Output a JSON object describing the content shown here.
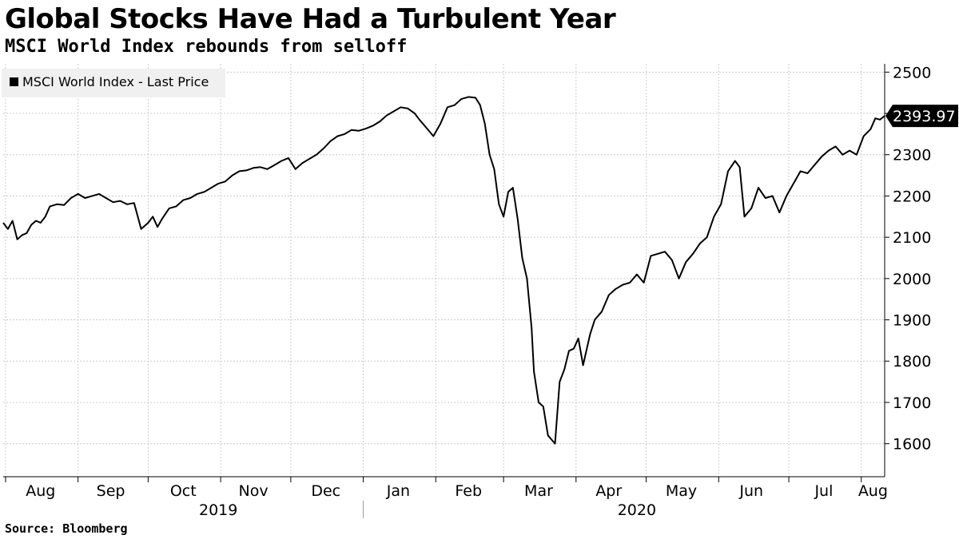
{
  "header": {
    "title": "Global Stocks Have Had a Turbulent Year",
    "subtitle": "MSCI World Index rebounds from selloff"
  },
  "footer": {
    "source": "Source: Bloomberg"
  },
  "colors": {
    "line": "#000000",
    "grid": "#cccccc",
    "legend_bg": "#f0f0f0",
    "last_price_bg": "#000000"
  },
  "chart_data": {
    "type": "line",
    "legend": {
      "entries": [
        "MSCI World Index - Last Price"
      ],
      "placement": "top-left"
    },
    "last_value_label": "2393.97",
    "xlabel": "",
    "ylabel": "",
    "ylim": [
      1520,
      2520
    ],
    "y_ticks": [
      1600,
      1700,
      1800,
      1900,
      2000,
      2100,
      2200,
      2300,
      2400,
      2500
    ],
    "y_tick_labels": [
      "1600",
      "1700",
      "1800",
      "1900",
      "2000",
      "2100",
      "2200",
      "2300",
      "2400",
      "2500"
    ],
    "y_axis_position": "right",
    "grid": true,
    "x_range": [
      "2019-07-31",
      "2020-08-11"
    ],
    "x_month_ticks": [
      "2019-08-01",
      "2019-09-01",
      "2019-10-01",
      "2019-11-01",
      "2019-12-01",
      "2020-01-01",
      "2020-02-01",
      "2020-03-01",
      "2020-04-01",
      "2020-05-01",
      "2020-06-01",
      "2020-07-01",
      "2020-08-01"
    ],
    "x_month_labels": [
      {
        "label": "Aug",
        "date": "2019-08-16"
      },
      {
        "label": "Sep",
        "date": "2019-09-15"
      },
      {
        "label": "Oct",
        "date": "2019-10-16"
      },
      {
        "label": "Nov",
        "date": "2019-11-15"
      },
      {
        "label": "Dec",
        "date": "2019-12-16"
      },
      {
        "label": "Jan",
        "date": "2020-01-16"
      },
      {
        "label": "Feb",
        "date": "2020-02-15"
      },
      {
        "label": "Mar",
        "date": "2020-03-16"
      },
      {
        "label": "Apr",
        "date": "2020-04-15"
      },
      {
        "label": "May",
        "date": "2020-05-16"
      },
      {
        "label": "Jun",
        "date": "2020-06-15"
      },
      {
        "label": "Jul",
        "date": "2020-07-16"
      },
      {
        "label": "Aug",
        "date": "2020-08-06"
      }
    ],
    "x_year_labels": [
      {
        "label": "2019",
        "date": "2019-10-31"
      },
      {
        "label": "2020",
        "date": "2020-04-27"
      }
    ],
    "year_divider_date": "2020-01-01",
    "series": [
      {
        "name": "MSCI World Index - Last Price",
        "points": [
          [
            "2019-07-31",
            2135
          ],
          [
            "2019-08-02",
            2120
          ],
          [
            "2019-08-04",
            2140
          ],
          [
            "2019-08-06",
            2095
          ],
          [
            "2019-08-08",
            2105
          ],
          [
            "2019-08-10",
            2110
          ],
          [
            "2019-08-12",
            2130
          ],
          [
            "2019-08-14",
            2140
          ],
          [
            "2019-08-16",
            2135
          ],
          [
            "2019-08-18",
            2150
          ],
          [
            "2019-08-20",
            2175
          ],
          [
            "2019-08-23",
            2180
          ],
          [
            "2019-08-26",
            2178
          ],
          [
            "2019-08-29",
            2195
          ],
          [
            "2019-09-01",
            2205
          ],
          [
            "2019-09-04",
            2195
          ],
          [
            "2019-09-07",
            2200
          ],
          [
            "2019-09-10",
            2205
          ],
          [
            "2019-09-13",
            2195
          ],
          [
            "2019-09-16",
            2185
          ],
          [
            "2019-09-19",
            2188
          ],
          [
            "2019-09-22",
            2180
          ],
          [
            "2019-09-25",
            2183
          ],
          [
            "2019-09-28",
            2120
          ],
          [
            "2019-10-01",
            2135
          ],
          [
            "2019-10-03",
            2150
          ],
          [
            "2019-10-05",
            2125
          ],
          [
            "2019-10-07",
            2145
          ],
          [
            "2019-10-10",
            2170
          ],
          [
            "2019-10-13",
            2175
          ],
          [
            "2019-10-16",
            2190
          ],
          [
            "2019-10-19",
            2195
          ],
          [
            "2019-10-22",
            2205
          ],
          [
            "2019-10-25",
            2210
          ],
          [
            "2019-10-28",
            2220
          ],
          [
            "2019-10-31",
            2230
          ],
          [
            "2019-11-03",
            2235
          ],
          [
            "2019-11-06",
            2250
          ],
          [
            "2019-11-09",
            2260
          ],
          [
            "2019-11-12",
            2262
          ],
          [
            "2019-11-15",
            2268
          ],
          [
            "2019-11-18",
            2270
          ],
          [
            "2019-11-21",
            2265
          ],
          [
            "2019-11-24",
            2275
          ],
          [
            "2019-11-27",
            2285
          ],
          [
            "2019-11-30",
            2292
          ],
          [
            "2019-12-03",
            2265
          ],
          [
            "2019-12-06",
            2280
          ],
          [
            "2019-12-09",
            2290
          ],
          [
            "2019-12-12",
            2300
          ],
          [
            "2019-12-15",
            2315
          ],
          [
            "2019-12-18",
            2333
          ],
          [
            "2019-12-21",
            2345
          ],
          [
            "2019-12-24",
            2350
          ],
          [
            "2019-12-27",
            2360
          ],
          [
            "2019-12-30",
            2358
          ],
          [
            "2020-01-02",
            2363
          ],
          [
            "2020-01-05",
            2370
          ],
          [
            "2020-01-08",
            2380
          ],
          [
            "2020-01-11",
            2395
          ],
          [
            "2020-01-14",
            2405
          ],
          [
            "2020-01-17",
            2415
          ],
          [
            "2020-01-20",
            2412
          ],
          [
            "2020-01-23",
            2400
          ],
          [
            "2020-01-25",
            2385
          ],
          [
            "2020-01-28",
            2365
          ],
          [
            "2020-01-31",
            2345
          ],
          [
            "2020-02-03",
            2375
          ],
          [
            "2020-02-06",
            2415
          ],
          [
            "2020-02-09",
            2420
          ],
          [
            "2020-02-12",
            2435
          ],
          [
            "2020-02-15",
            2440
          ],
          [
            "2020-02-18",
            2438
          ],
          [
            "2020-02-20",
            2420
          ],
          [
            "2020-02-22",
            2375
          ],
          [
            "2020-02-24",
            2300
          ],
          [
            "2020-02-26",
            2265
          ],
          [
            "2020-02-28",
            2180
          ],
          [
            "2020-03-01",
            2150
          ],
          [
            "2020-03-03",
            2210
          ],
          [
            "2020-03-05",
            2220
          ],
          [
            "2020-03-07",
            2145
          ],
          [
            "2020-03-09",
            2050
          ],
          [
            "2020-03-11",
            2000
          ],
          [
            "2020-03-13",
            1880
          ],
          [
            "2020-03-14",
            1775
          ],
          [
            "2020-03-16",
            1700
          ],
          [
            "2020-03-18",
            1690
          ],
          [
            "2020-03-20",
            1620
          ],
          [
            "2020-03-23",
            1600
          ],
          [
            "2020-03-25",
            1750
          ],
          [
            "2020-03-27",
            1780
          ],
          [
            "2020-03-29",
            1825
          ],
          [
            "2020-03-31",
            1830
          ],
          [
            "2020-04-02",
            1855
          ],
          [
            "2020-04-04",
            1790
          ],
          [
            "2020-04-07",
            1865
          ],
          [
            "2020-04-09",
            1900
          ],
          [
            "2020-04-12",
            1920
          ],
          [
            "2020-04-15",
            1960
          ],
          [
            "2020-04-18",
            1975
          ],
          [
            "2020-04-21",
            1985
          ],
          [
            "2020-04-24",
            1990
          ],
          [
            "2020-04-27",
            2010
          ],
          [
            "2020-04-30",
            1990
          ],
          [
            "2020-05-03",
            2055
          ],
          [
            "2020-05-06",
            2060
          ],
          [
            "2020-05-09",
            2065
          ],
          [
            "2020-05-12",
            2045
          ],
          [
            "2020-05-15",
            2000
          ],
          [
            "2020-05-18",
            2040
          ],
          [
            "2020-05-21",
            2060
          ],
          [
            "2020-05-24",
            2085
          ],
          [
            "2020-05-27",
            2100
          ],
          [
            "2020-05-30",
            2150
          ],
          [
            "2020-06-02",
            2180
          ],
          [
            "2020-06-05",
            2260
          ],
          [
            "2020-06-08",
            2285
          ],
          [
            "2020-06-10",
            2270
          ],
          [
            "2020-06-12",
            2150
          ],
          [
            "2020-06-15",
            2170
          ],
          [
            "2020-06-18",
            2220
          ],
          [
            "2020-06-21",
            2195
          ],
          [
            "2020-06-24",
            2200
          ],
          [
            "2020-06-27",
            2160
          ],
          [
            "2020-06-30",
            2200
          ],
          [
            "2020-07-03",
            2230
          ],
          [
            "2020-07-06",
            2260
          ],
          [
            "2020-07-09",
            2255
          ],
          [
            "2020-07-12",
            2275
          ],
          [
            "2020-07-15",
            2295
          ],
          [
            "2020-07-18",
            2310
          ],
          [
            "2020-07-21",
            2320
          ],
          [
            "2020-07-24",
            2300
          ],
          [
            "2020-07-27",
            2310
          ],
          [
            "2020-07-30",
            2300
          ],
          [
            "2020-08-02",
            2345
          ],
          [
            "2020-08-05",
            2362
          ],
          [
            "2020-08-07",
            2388
          ],
          [
            "2020-08-09",
            2385
          ],
          [
            "2020-08-11",
            2393.97
          ]
        ]
      }
    ]
  }
}
